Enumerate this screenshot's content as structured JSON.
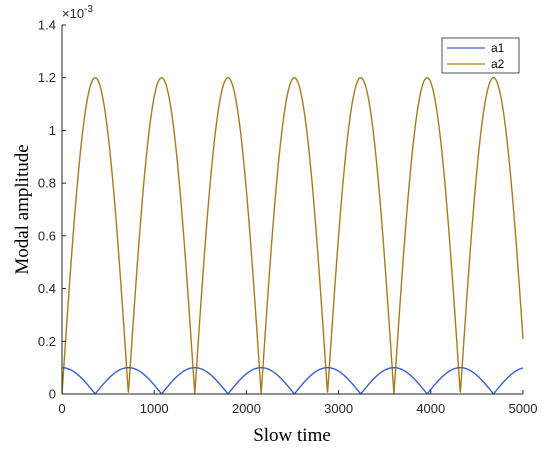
{
  "chart_data": {
    "type": "line",
    "xlabel": "Slow time",
    "ylabel": "Modal amplitude",
    "exponent_label": "×10",
    "exponent_power": "-3",
    "xlim": [
      0,
      5000
    ],
    "ylim": [
      0,
      1.4
    ],
    "x_ticks": [
      0,
      1000,
      2000,
      3000,
      4000,
      5000
    ],
    "x_tick_labels": [
      "0",
      "1000",
      "2000",
      "3000",
      "4000",
      "5000"
    ],
    "y_ticks": [
      0,
      0.2,
      0.4,
      0.6,
      0.8,
      1.0,
      1.2,
      1.4
    ],
    "y_tick_labels": [
      "0",
      "0.2",
      "0.4",
      "0.6",
      "0.8",
      "1",
      "1.2",
      "1.4"
    ],
    "legend_position": "top-right",
    "grid": false,
    "series": [
      {
        "name": "a1",
        "color": "#3a5fc8",
        "model": "|cos|",
        "amplitude": 0.1,
        "period": 720,
        "x_start": 0,
        "x_end": 5000
      },
      {
        "name": "a2",
        "color": "#a67c1a",
        "model": "|sin|",
        "amplitude": 1.2,
        "period": 720,
        "x_start": 0,
        "x_end": 5000
      }
    ]
  }
}
